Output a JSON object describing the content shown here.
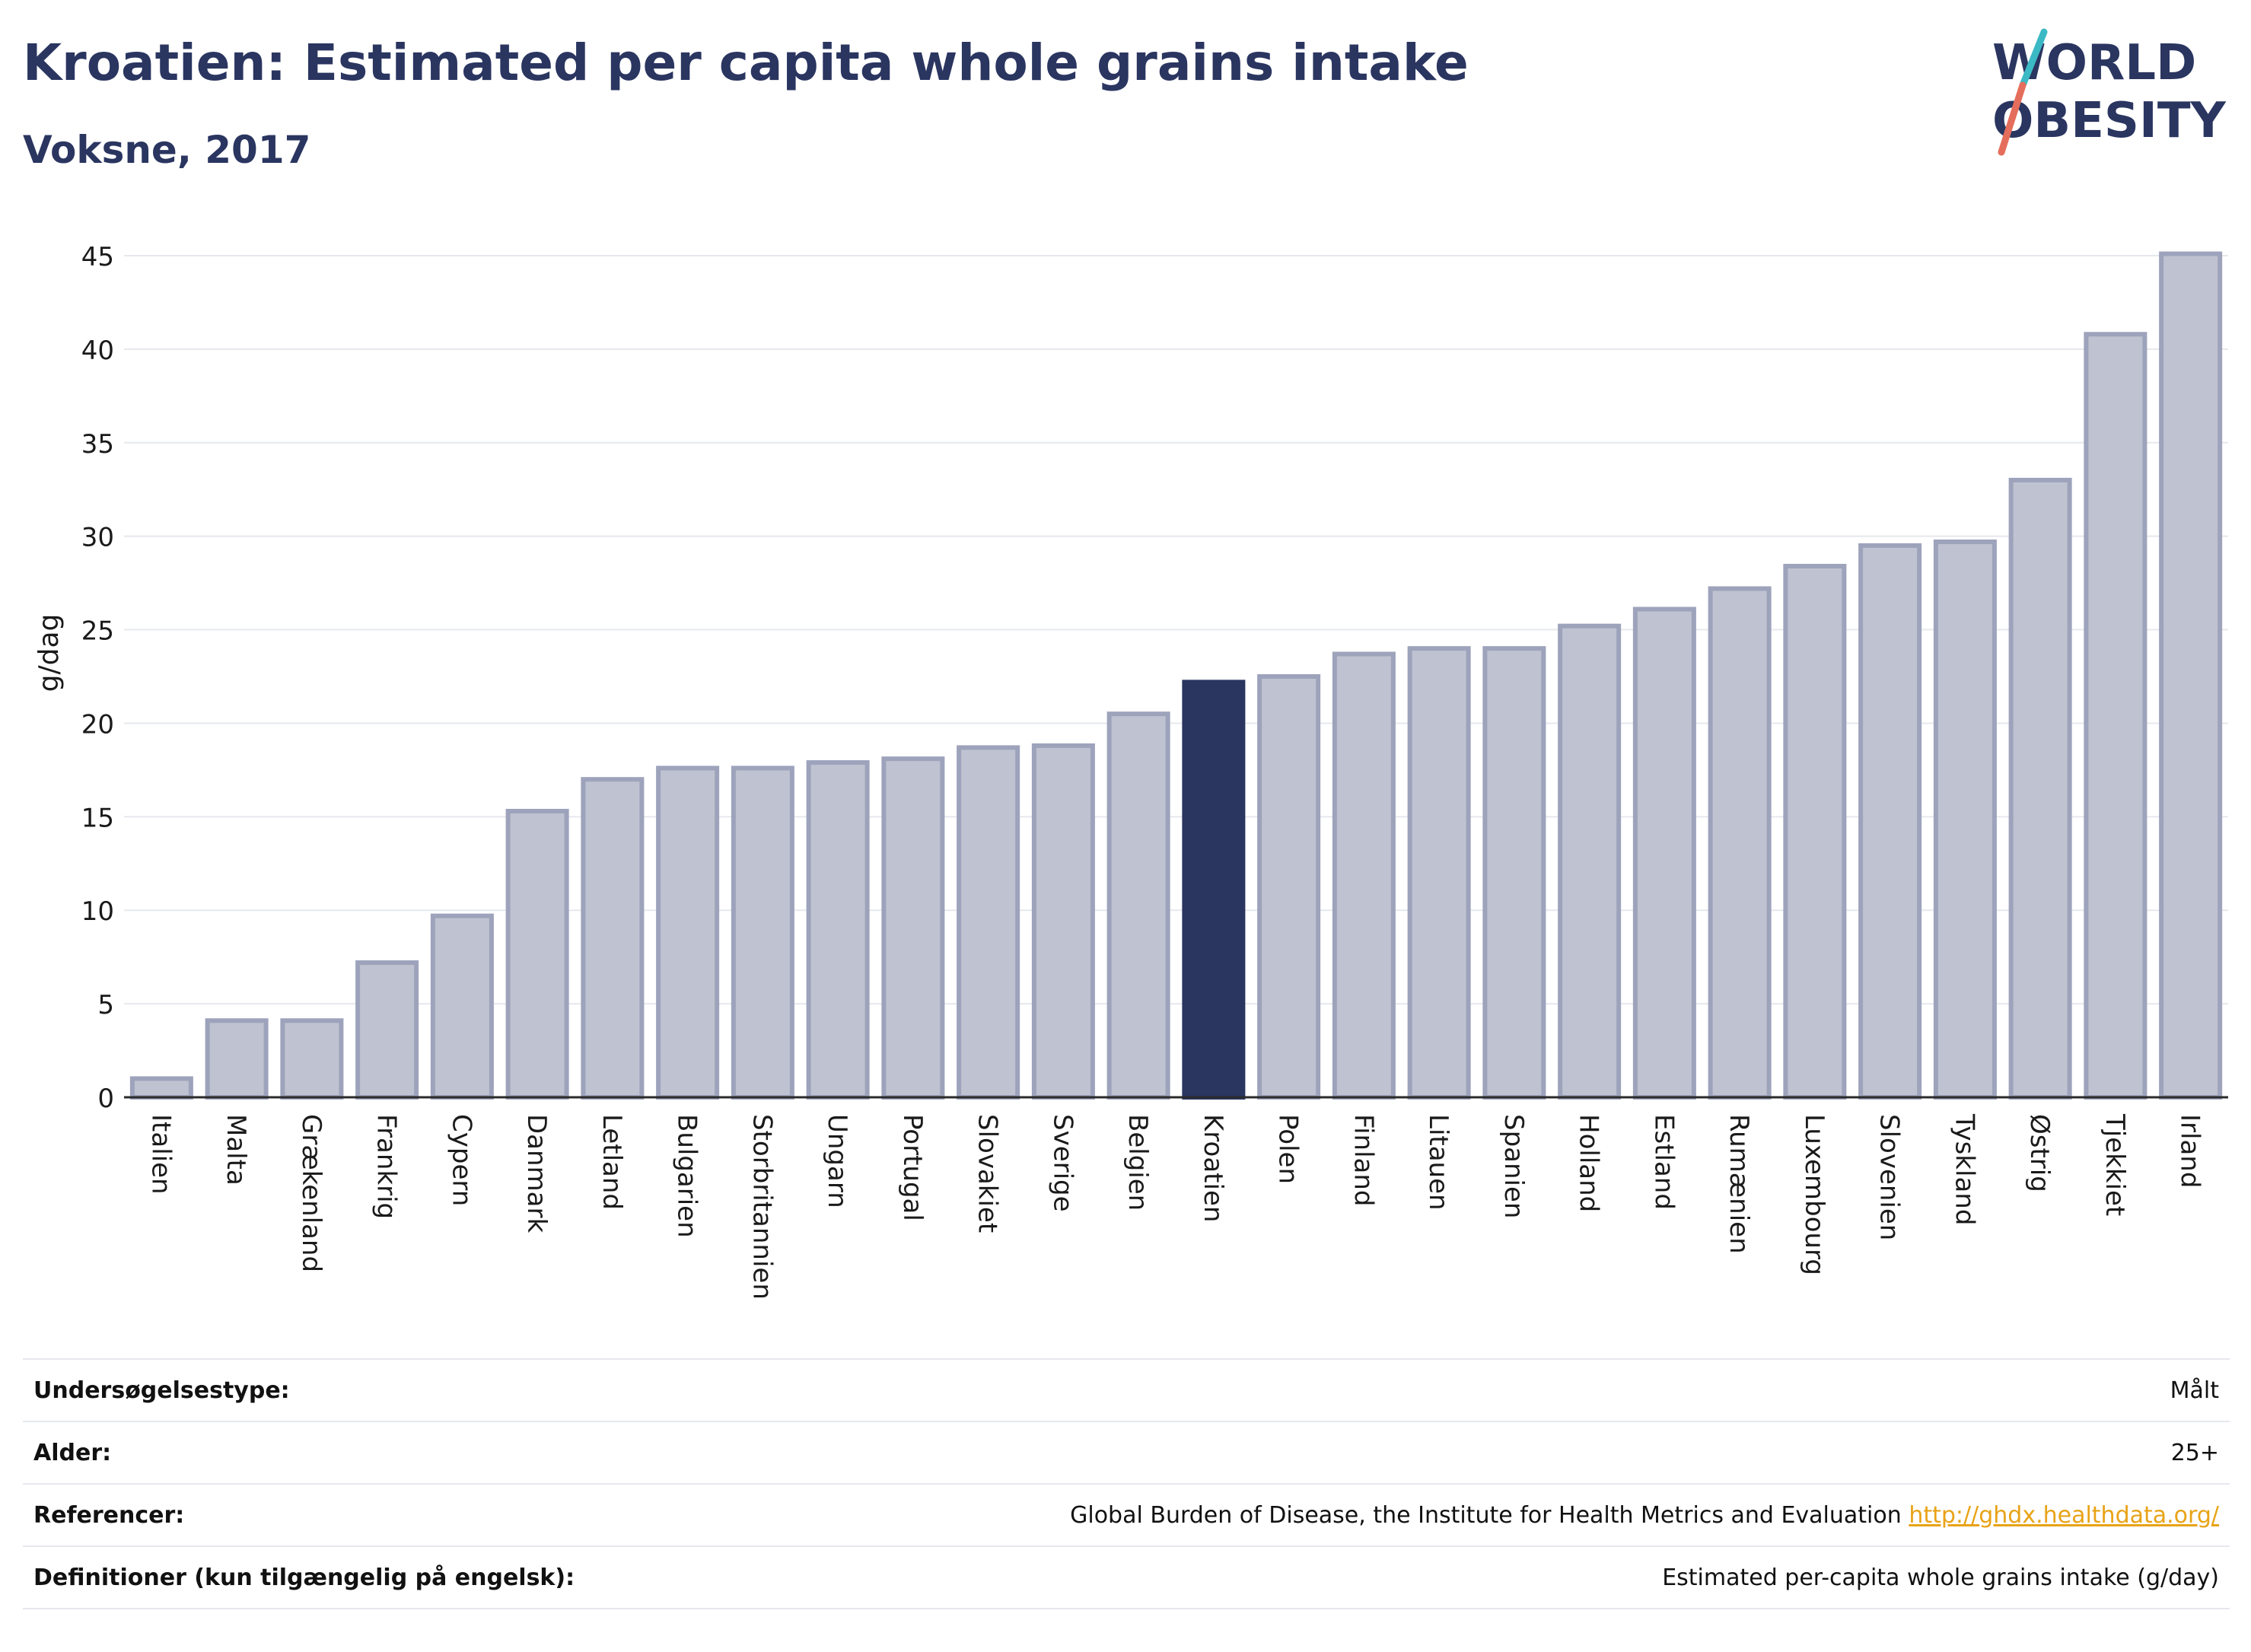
{
  "header": {
    "title": "Kroatien: Estimated per capita whole grains intake",
    "subtitle": "Voksne, 2017",
    "logo_text": "WORLD OBESITY"
  },
  "colors": {
    "title": "#2a3560",
    "bar_fill": "#bfc2d0",
    "bar_stroke": "#9ea3bc",
    "highlight": "#2a3560",
    "link": "#e8a317"
  },
  "chart_data": {
    "type": "bar",
    "title": "Kroatien: Estimated per capita whole grains intake",
    "subtitle": "Voksne, 2017",
    "ylabel": "g/dag",
    "xlabel": "",
    "ylim": [
      0,
      45
    ],
    "yticks": [
      0,
      5,
      10,
      15,
      20,
      25,
      30,
      35,
      40,
      45
    ],
    "grid": true,
    "highlight": "Kroatien",
    "categories": [
      "Italien",
      "Malta",
      "Grækenland",
      "Frankrig",
      "Cypern",
      "Danmark",
      "Letland",
      "Bulgarien",
      "Storbritannien",
      "Ungarn",
      "Portugal",
      "Slovakiet",
      "Sverige",
      "Belgien",
      "Kroatien",
      "Polen",
      "Finland",
      "Litauen",
      "Spanien",
      "Holland",
      "Estland",
      "Rumænien",
      "Luxembourg",
      "Slovenien",
      "Tyskland",
      "Østrig",
      "Tjekkiet",
      "Irland"
    ],
    "values": [
      1.0,
      4.1,
      4.1,
      7.2,
      9.7,
      15.3,
      17.0,
      17.6,
      17.6,
      17.9,
      18.1,
      18.7,
      18.8,
      20.5,
      22.2,
      22.5,
      23.7,
      24.0,
      24.0,
      25.2,
      26.1,
      27.2,
      28.4,
      29.5,
      29.7,
      33.0,
      40.8,
      45.1
    ]
  },
  "info_table": [
    {
      "label": "Undersøgelsestype:",
      "value": "Målt"
    },
    {
      "label": "Alder:",
      "value": "25+"
    },
    {
      "label": "Referencer:",
      "value": "Global Burden of Disease, the Institute for Health Metrics and Evaluation",
      "link": "http://ghdx.healthdata.org/"
    },
    {
      "label": "Definitioner (kun tilgængelig på engelsk):",
      "value": "Estimated per-capita whole grains intake (g/day)"
    }
  ]
}
